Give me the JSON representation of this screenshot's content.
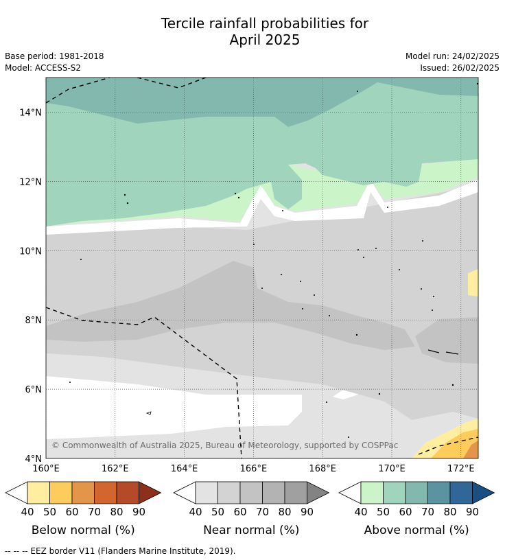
{
  "title": {
    "line1": "Tercile rainfall probabilities for",
    "line2": "April 2025"
  },
  "meta": {
    "base_period": "Base period: 1981-2018",
    "model": "Model: ACCESS-S2",
    "model_run": "Model run: 24/02/2025",
    "issued": "Issued: 26/02/2025"
  },
  "map": {
    "lat_labels": [
      "14°N",
      "12°N",
      "10°N",
      "8°N",
      "6°N",
      "4°N"
    ],
    "lat_values": [
      14,
      12,
      10,
      8,
      6,
      4
    ],
    "lon_labels": [
      "160°E",
      "162°E",
      "164°E",
      "166°E",
      "168°E",
      "170°E",
      "172°E"
    ],
    "lon_values": [
      160,
      162,
      164,
      166,
      168,
      170,
      172
    ],
    "lon_range": [
      160,
      172.5
    ],
    "lat_range": [
      4,
      15
    ],
    "copyright": "© Commonwealth of Australia 2025, Bureau of Meteorology, supported by COSPPac"
  },
  "colorbars": [
    {
      "label": "Below normal (%)",
      "ticks": [
        "40",
        "50",
        "60",
        "70",
        "80",
        "90"
      ],
      "colors": [
        "#ffeda0",
        "#fecc5c",
        "#e3964a",
        "#d3652f",
        "#b54a28",
        "#8e2f1c"
      ]
    },
    {
      "label": "Near normal (%)",
      "ticks": [
        "40",
        "50",
        "60",
        "70",
        "80",
        "90"
      ],
      "colors": [
        "#e3e3e3",
        "#d3d3d3",
        "#c3c3c3",
        "#b3b3b3",
        "#a0a0a0",
        "#838383"
      ]
    },
    {
      "label": "Above normal (%)",
      "ticks": [
        "40",
        "50",
        "60",
        "70",
        "80",
        "90"
      ],
      "colors": [
        "#cbf5c8",
        "#a1d4bc",
        "#82b8ad",
        "#5b93a1",
        "#316698",
        "#1b4e83"
      ]
    }
  ],
  "footnote": "--  --  -- EEZ border V11 (Flanders Marine Institute, 2019)."
}
